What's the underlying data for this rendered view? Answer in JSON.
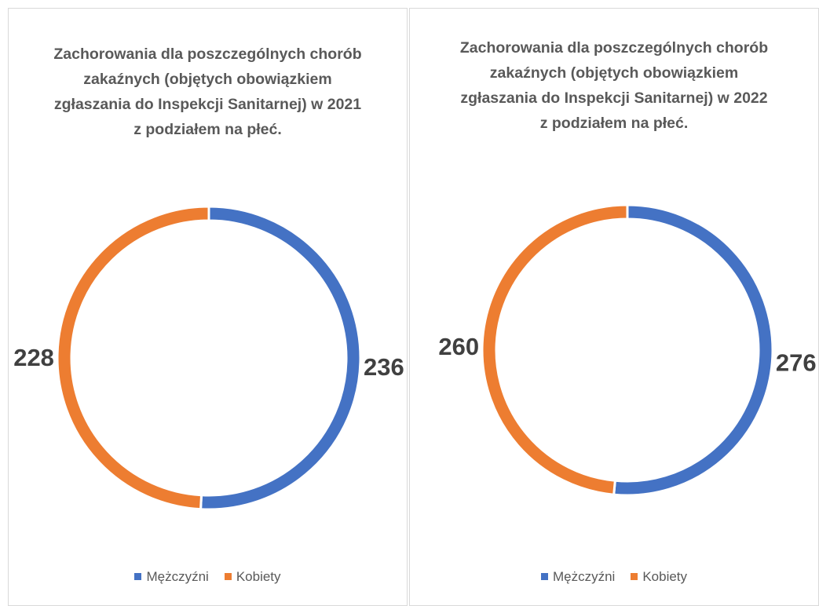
{
  "chart_data": [
    {
      "type": "donut",
      "title": "Zachorowania dla poszczególnych chorób zakaźnych (objętych obowiązkiem zgłaszania do Inspekcji Sanitarnej) w 2021 z podziałem na płeć.",
      "categories": [
        "Mężczyźni",
        "Kobiety"
      ],
      "values": [
        236,
        228
      ],
      "colors": [
        "#4472c4",
        "#ed7d31"
      ],
      "legend": "bottom"
    },
    {
      "type": "donut",
      "title": "Zachorowania dla poszczególnych chorób zakaźnych (objętych obowiązkiem zgłaszania do Inspekcji Sanitarnej) w 2022 z podziałem na płeć.",
      "categories": [
        "Mężczyźni",
        "Kobiety"
      ],
      "values": [
        276,
        260
      ],
      "colors": [
        "#4472c4",
        "#ed7d31"
      ],
      "legend": "bottom"
    }
  ]
}
